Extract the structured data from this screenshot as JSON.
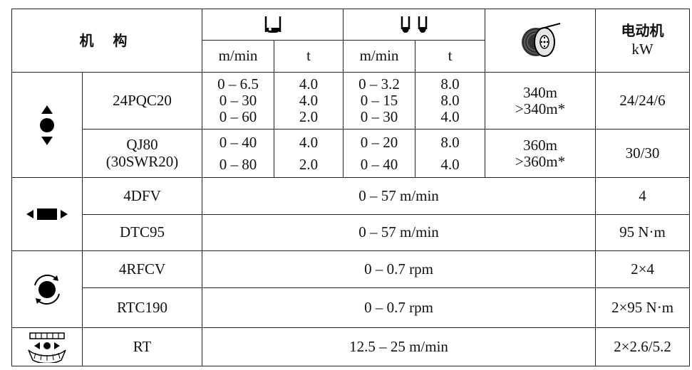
{
  "header": {
    "mechanism": "机 构",
    "motor_line1": "电动机",
    "motor_unit": "kW",
    "single_speed_unit": "m/min",
    "single_load_unit": "t",
    "double_speed_unit": "m/min",
    "double_load_unit": "t"
  },
  "icons": {
    "hoist": "hoist-up-down-icon",
    "single_fall": "single-fall-hook-icon",
    "double_fall": "double-fall-hook-icon",
    "drum": "rope-drum-icon",
    "trolley": "trolley-travel-icon",
    "slewing": "slewing-rotation-icon",
    "travel": "crane-travel-icon"
  },
  "rows": {
    "r1": {
      "model": "24PQC20",
      "single_speed": [
        "0 – 6.5",
        "0 – 30",
        "0 – 60"
      ],
      "single_load": [
        "4.0",
        "4.0",
        "2.0"
      ],
      "double_speed": [
        "0 – 3.2",
        "0 – 15",
        "0 – 30"
      ],
      "double_load": [
        "8.0",
        "8.0",
        "4.0"
      ],
      "rope": [
        "340m",
        ">340m*"
      ],
      "motor": "24/24/6"
    },
    "r2": {
      "model_line1": "QJ80",
      "model_line2": "(30SWR20)",
      "single_speed": [
        "0 – 40",
        "0 – 80"
      ],
      "single_load": [
        "4.0",
        "2.0"
      ],
      "double_speed": [
        "0 – 20",
        "0 – 40"
      ],
      "double_load": [
        "8.0",
        "4.0"
      ],
      "rope": [
        "360m",
        ">360m*"
      ],
      "motor": "30/30"
    },
    "r3": {
      "model": "4DFV",
      "value": "0 – 57 m/min",
      "motor": "4"
    },
    "r4": {
      "model": "DTC95",
      "value": "0 – 57 m/min",
      "motor": "95 N·m"
    },
    "r5": {
      "model": "4RFCV",
      "value": "0 – 0.7 rpm",
      "motor": "2×4"
    },
    "r6": {
      "model": "RTC190",
      "value": "0 – 0.7 rpm",
      "motor": "2×95 N·m"
    },
    "r7": {
      "model": "RT",
      "value": "12.5 – 25 m/min",
      "motor": "2×2.6/5.2"
    }
  }
}
